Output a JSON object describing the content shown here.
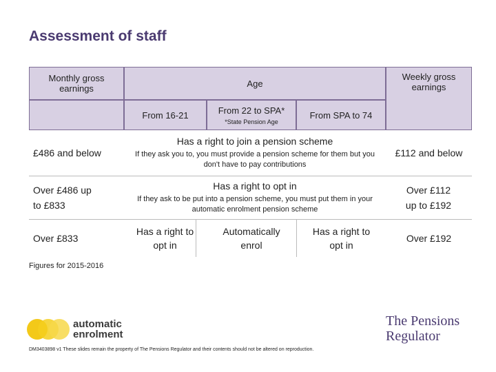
{
  "header": {
    "title": "Assessment of staff"
  },
  "table": {
    "monthly_header": "Monthly gross earnings",
    "age_header": "Age",
    "weekly_header": "Weekly gross earnings",
    "age_columns": [
      "From 16-21",
      "From 22 to SPA*",
      "From SPA to 74"
    ],
    "age_note": "*State Pension Age",
    "rows": [
      {
        "monthly": "£486 and below",
        "weekly": "£112 and below",
        "heading": "Has a right to join a pension scheme",
        "detail": "If they ask you to, you must provide a pension scheme for them but you don't have to pay contributions"
      },
      {
        "monthly": "Over £486 up to £833",
        "weekly": "Over £112 up to £192",
        "heading": "Has a right to opt in",
        "detail": "If they ask to be put into a pension scheme, you must put them in your automatic enrolment pension scheme"
      },
      {
        "monthly": "Over £833",
        "weekly": "Over £192",
        "cells": [
          "Has a right to opt in",
          "Automatically enrol",
          "Has a right to opt in"
        ]
      }
    ]
  },
  "footnote": "Figures for 2015-2016",
  "footer": {
    "logo_left": "automatic enrolment",
    "logo_right": "The Pensions Regulator",
    "disclaimer": "DM3403898 v1 These slides remain the property of The Pensions Regulator and their contents should not be altered on reproduction."
  }
}
